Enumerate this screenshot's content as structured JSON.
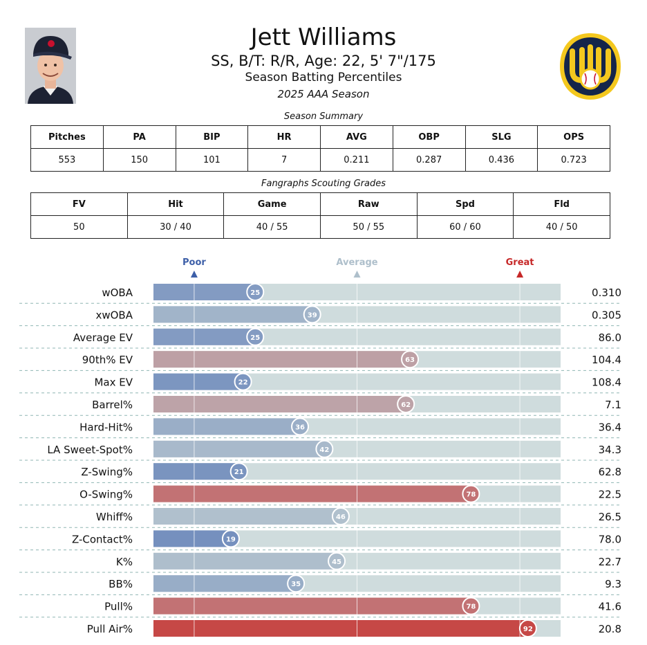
{
  "player": {
    "name": "Jett Williams",
    "meta": "SS, B/T: R/R, Age: 22, 5' 7\"/175",
    "subtitle": "Season Batting Percentiles",
    "season": "2025 AAA Season"
  },
  "colors": {
    "poor": "#4c6fb4",
    "average": "#b9c7cf",
    "great": "#c9302c",
    "track": "#cfdcdd"
  },
  "summary": {
    "caption": "Season Summary",
    "headers": [
      "Pitches",
      "PA",
      "BIP",
      "HR",
      "AVG",
      "OBP",
      "SLG",
      "OPS"
    ],
    "values": [
      "553",
      "150",
      "101",
      "7",
      "0.211",
      "0.287",
      "0.436",
      "0.723"
    ]
  },
  "scouting": {
    "caption": "Fangraphs Scouting Grades",
    "headers": [
      "FV",
      "Hit",
      "Game",
      "Raw",
      "Spd",
      "Fld"
    ],
    "values": [
      "50",
      "30 / 40",
      "40 / 55",
      "50 / 55",
      "60 / 60",
      "40 / 50"
    ]
  },
  "chart_data": {
    "type": "bar",
    "title": "Season Batting Percentiles",
    "xlim": [
      0,
      100
    ],
    "reference_lines": [
      10,
      50,
      90
    ],
    "scale_labels": {
      "poor": "Poor",
      "average": "Average",
      "great": "Great"
    },
    "categories": [
      "wOBA",
      "xwOBA",
      "Average EV",
      "90th% EV",
      "Max EV",
      "Barrel%",
      "Hard-Hit%",
      "LA Sweet-Spot%",
      "Z-Swing%",
      "O-Swing%",
      "Whiff%",
      "Z-Contact%",
      "K%",
      "BB%",
      "Pull%",
      "Pull Air%"
    ],
    "percentiles": [
      25,
      39,
      25,
      63,
      22,
      62,
      36,
      42,
      21,
      78,
      46,
      19,
      45,
      35,
      78,
      92
    ],
    "stat_values": [
      "0.310",
      "0.305",
      "86.0",
      "104.4",
      "108.4",
      "7.1",
      "36.4",
      "34.3",
      "62.8",
      "22.5",
      "26.5",
      "78.0",
      "22.7",
      "9.3",
      "41.6",
      "20.8"
    ]
  }
}
